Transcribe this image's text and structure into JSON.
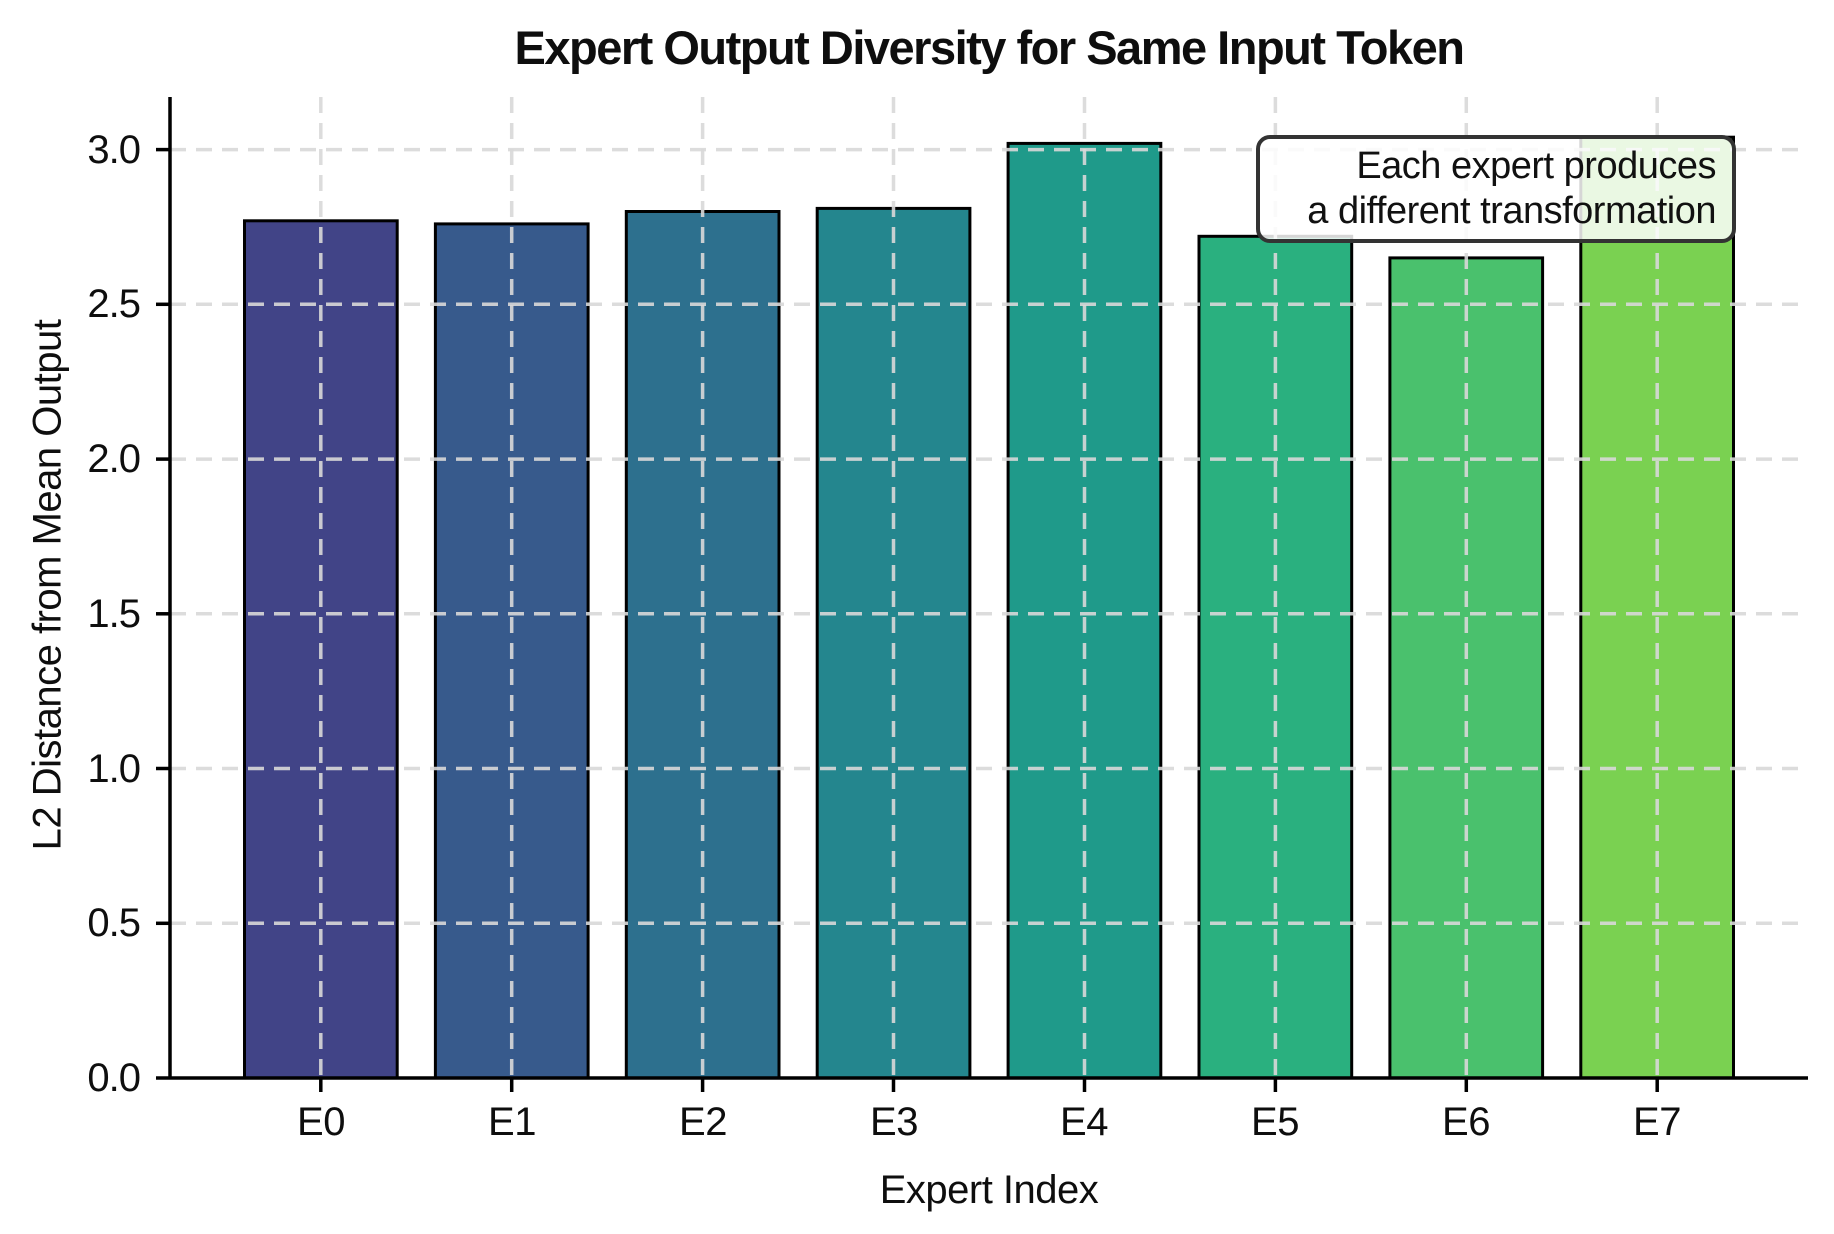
{
  "chart_data": {
    "type": "bar",
    "title": "Expert Output Diversity for Same Input Token",
    "xlabel": "Expert Index",
    "ylabel": "L2 Distance from Mean Output",
    "categories": [
      "E0",
      "E1",
      "E2",
      "E3",
      "E4",
      "E5",
      "E6",
      "E7"
    ],
    "values": [
      2.77,
      2.76,
      2.8,
      2.81,
      3.02,
      2.72,
      2.65,
      3.04
    ],
    "bar_colors": [
      "#414487",
      "#375a8c",
      "#2d708e",
      "#24868e",
      "#1f9a8a",
      "#2ab07f",
      "#4ac16d",
      "#7ad151"
    ],
    "bar_edge_color": "#000000",
    "ytick_labels": [
      "0.0",
      "0.5",
      "1.0",
      "1.5",
      "2.0",
      "2.5",
      "3.0"
    ],
    "yticks": [
      0.0,
      0.5,
      1.0,
      1.5,
      2.0,
      2.5,
      3.0
    ],
    "ylim": [
      0,
      3.17
    ],
    "grid": "dashed gridlines on both axes, drawn over bars",
    "grid_color": "#d9d9d9",
    "axis_color": "#000000",
    "legend": null,
    "annotation": {
      "text": "Each expert produces\na different transformation",
      "align": "right",
      "box_background": "rgba(255,255,255,0.84)",
      "box_border_color": "#333333"
    }
  }
}
